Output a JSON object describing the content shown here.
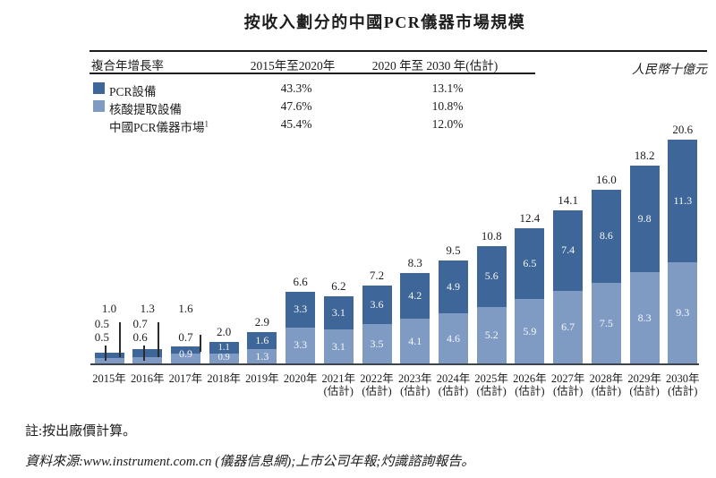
{
  "title": "按收入劃分的中國PCR儀器市場規模",
  "unit_label": "人民幣十億元",
  "cagr_table": {
    "header": [
      "複合年增長率",
      "2015年至2020年",
      "2020 年至 2030 年(估計)"
    ],
    "rows": [
      {
        "label": "PCR設備",
        "period1": "43.3%",
        "period2": "13.1%"
      },
      {
        "label": "核酸提取設備",
        "period1": "47.6%",
        "period2": "10.8%"
      },
      {
        "label": "中國PCR儀器市場",
        "label_superscript": "1",
        "period1": "45.4%",
        "period2": "12.0%"
      }
    ]
  },
  "chart_data": {
    "type": "bar",
    "stacked": true,
    "title": "按收入劃分的中國PCR儀器市場規模",
    "ylabel": "人民幣十億元",
    "ylim": [
      0,
      22
    ],
    "grid": false,
    "categories": [
      "2015年",
      "2016年",
      "2017年",
      "2018年",
      "2019年",
      "2020年",
      "2021年",
      "2022年",
      "2023年",
      "2024年",
      "2025年",
      "2026年",
      "2027年",
      "2028年",
      "2029年",
      "2030年"
    ],
    "estimated_from_index": 6,
    "category_suffix_estimated": "(估計)",
    "series": [
      {
        "name": "PCR設備",
        "position": "top",
        "color": "#3e6698",
        "values": [
          0.5,
          0.7,
          0.7,
          1.1,
          1.6,
          3.3,
          3.1,
          3.6,
          4.2,
          4.9,
          5.6,
          6.5,
          7.4,
          8.6,
          9.8,
          11.3
        ]
      },
      {
        "name": "核酸提取設備",
        "position": "bottom",
        "color": "#7f9bc4",
        "values": [
          0.5,
          0.6,
          0.9,
          0.9,
          1.3,
          3.3,
          3.1,
          3.5,
          4.1,
          4.6,
          5.2,
          5.9,
          6.7,
          7.5,
          8.3,
          9.3
        ]
      }
    ],
    "totals": [
      1.0,
      1.3,
      1.6,
      2.0,
      2.9,
      6.6,
      6.2,
      7.2,
      8.3,
      9.5,
      10.8,
      12.4,
      14.1,
      16.0,
      18.2,
      20.6
    ],
    "cagr": {
      "PCR設備": {
        "2015-2020": "43.3%",
        "2020-2030E": "13.1%"
      },
      "核酸提取設備": {
        "2015-2020": "47.6%",
        "2020-2030E": "10.8%"
      },
      "中國PCR儀器市場": {
        "2015-2020": "45.4%",
        "2020-2030E": "12.0%"
      }
    }
  },
  "notes": {
    "note1": "註:按出廠價計算。",
    "source": "資料來源:www.instrument.com.cn (儀器信息網);上市公司年報;灼識諮詢報告。"
  }
}
